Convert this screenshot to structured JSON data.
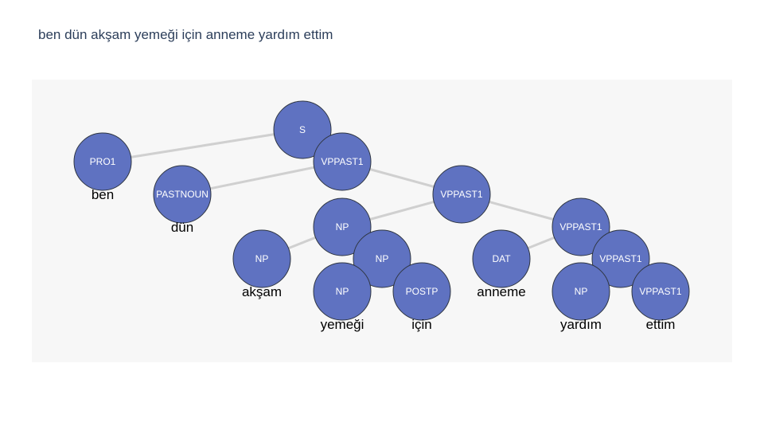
{
  "sentence": "ben dün akşam yemeği için anneme yardım ettim",
  "tree": {
    "nodes": [
      {
        "id": "s",
        "label": "S"
      },
      {
        "id": "pro1",
        "label": "PRO1",
        "word": "ben"
      },
      {
        "id": "vp1",
        "label": "VPPAST1"
      },
      {
        "id": "pastnoun",
        "label": "PASTNOUN",
        "word": "dün"
      },
      {
        "id": "vp2",
        "label": "VPPAST1"
      },
      {
        "id": "np1",
        "label": "NP"
      },
      {
        "id": "np_aksam",
        "label": "NP",
        "word": "akşam"
      },
      {
        "id": "np2",
        "label": "NP"
      },
      {
        "id": "np_yemegi",
        "label": "NP",
        "word": "yemeği"
      },
      {
        "id": "postp",
        "label": "POSTP",
        "word": "için"
      },
      {
        "id": "dat",
        "label": "DAT",
        "word": "anneme"
      },
      {
        "id": "vp3",
        "label": "VPPAST1"
      },
      {
        "id": "vp4",
        "label": "VPPAST1"
      },
      {
        "id": "np_yardim",
        "label": "NP",
        "word": "yardım"
      },
      {
        "id": "vp5",
        "label": "VPPAST1",
        "word": "ettim"
      }
    ],
    "edges": [
      [
        "s",
        "pro1"
      ],
      [
        "s",
        "vp1"
      ],
      [
        "vp1",
        "pastnoun"
      ],
      [
        "vp1",
        "vp2"
      ],
      [
        "vp2",
        "np1"
      ],
      [
        "vp2",
        "vp3"
      ],
      [
        "np1",
        "np_aksam"
      ],
      [
        "np1",
        "np2"
      ],
      [
        "np2",
        "np_yemegi"
      ],
      [
        "np2",
        "postp"
      ],
      [
        "vp3",
        "dat"
      ],
      [
        "vp3",
        "vp4"
      ],
      [
        "vp4",
        "np_yardim"
      ],
      [
        "vp4",
        "vp5"
      ]
    ]
  }
}
